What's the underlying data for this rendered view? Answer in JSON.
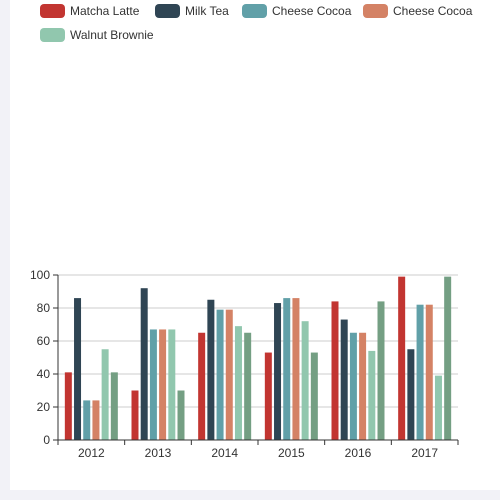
{
  "chart_data": {
    "type": "bar",
    "categories": [
      "2012",
      "2013",
      "2014",
      "2015",
      "2016",
      "2017"
    ],
    "series": [
      {
        "name": "Matcha Latte",
        "color": "#c23531",
        "values": [
          41,
          30,
          65,
          53,
          84,
          99
        ]
      },
      {
        "name": "Milk Tea",
        "color": "#2f4554",
        "values": [
          86,
          92,
          85,
          83,
          73,
          55
        ]
      },
      {
        "name": "Cheese Cocoa",
        "color": "#61a0a8",
        "values": [
          24,
          67,
          79,
          86,
          65,
          82
        ]
      },
      {
        "name": "Cheese Cocoa",
        "color": "#d48265",
        "values": [
          24,
          67,
          79,
          86,
          65,
          82
        ]
      },
      {
        "name": "Walnut Brownie",
        "color": "#91c7ae",
        "values": [
          55,
          67,
          69,
          72,
          54,
          39
        ]
      },
      {
        "name": "",
        "color": "#749f83",
        "values": [
          41,
          30,
          65,
          53,
          84,
          99
        ]
      }
    ],
    "yticks": [
      "0",
      "20",
      "40",
      "60",
      "80",
      "100"
    ],
    "ylim": [
      0,
      100
    ],
    "grid": true,
    "legend_position": "top-left"
  }
}
